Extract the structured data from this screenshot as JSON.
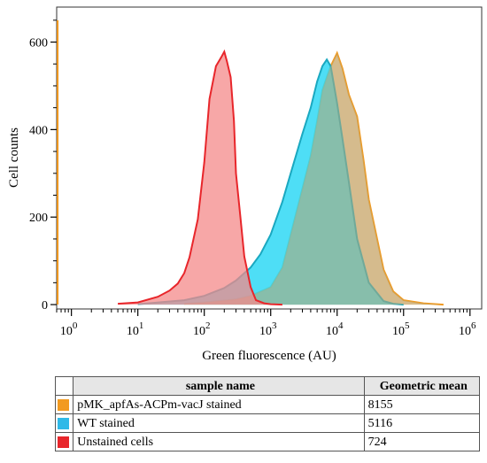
{
  "chart_data": {
    "type": "area",
    "xlabel": "Green fluorescence (AU)",
    "ylabel": "Cell counts",
    "x_scale": "log10",
    "xlim": [
      0.6,
      1500000
    ],
    "ylim": [
      -10,
      680
    ],
    "xticks": [
      {
        "value": 1,
        "base": "10",
        "exp": "0"
      },
      {
        "value": 10,
        "base": "10",
        "exp": "1"
      },
      {
        "value": 100,
        "base": "10",
        "exp": "2"
      },
      {
        "value": 1000,
        "base": "10",
        "exp": "3"
      },
      {
        "value": 10000,
        "base": "10",
        "exp": "4"
      },
      {
        "value": 100000,
        "base": "10",
        "exp": "5"
      },
      {
        "value": 1000000,
        "base": "10",
        "exp": "6"
      }
    ],
    "yticks": [
      0,
      200,
      400,
      600
    ],
    "series": [
      {
        "name": "Unstained cells",
        "stroke": "#e8262b",
        "fill": "#f48a8a",
        "x": [
          5,
          10,
          20,
          30,
          40,
          50,
          60,
          80,
          100,
          120,
          150,
          180,
          200,
          220,
          250,
          280,
          300,
          350,
          400,
          500,
          600,
          800,
          1000,
          1500
        ],
        "y": [
          2,
          5,
          18,
          32,
          48,
          72,
          108,
          195,
          325,
          470,
          545,
          565,
          578,
          555,
          520,
          420,
          300,
          200,
          110,
          40,
          10,
          3,
          1,
          0
        ]
      },
      {
        "name": "WT stained",
        "stroke": "#1aa8c0",
        "fill": "#2fd8f5",
        "x": [
          10,
          50,
          100,
          200,
          300,
          500,
          700,
          1000,
          1500,
          2000,
          3000,
          4000,
          5000,
          6000,
          7000,
          8000,
          10000,
          12000,
          15000,
          20000,
          30000,
          50000,
          70000,
          100000
        ],
        "y": [
          1,
          10,
          20,
          38,
          55,
          85,
          115,
          160,
          235,
          300,
          390,
          450,
          510,
          545,
          560,
          545,
          460,
          380,
          280,
          150,
          50,
          8,
          2,
          0
        ]
      },
      {
        "name": "pMK_apfAs-ACPm-vacJ stained",
        "stroke": "#f29a20",
        "fill": "#f5c28a",
        "x": [
          50,
          100,
          300,
          500,
          1000,
          1500,
          2000,
          3000,
          4000,
          5000,
          6000,
          7000,
          8000,
          10000,
          12000,
          15000,
          20000,
          25000,
          30000,
          50000,
          70000,
          100000,
          200000,
          400000
        ],
        "y": [
          2,
          5,
          12,
          20,
          40,
          85,
          160,
          265,
          340,
          420,
          490,
          520,
          545,
          575,
          540,
          480,
          430,
          330,
          240,
          80,
          30,
          10,
          3,
          0
        ]
      }
    ],
    "spike": {
      "x": 0.62,
      "y": 650
    }
  },
  "table": {
    "headers": {
      "name": "sample name",
      "value": "Geometric mean"
    },
    "rows": [
      {
        "name": "pMK_apfAs-ACPm-vacJ stained",
        "value": "8155",
        "color": "#f29a20"
      },
      {
        "name": "WT stained",
        "value": "5116",
        "color": "#2fb9e8"
      },
      {
        "name": "Unstained cells",
        "value": "724",
        "color": "#e8262b"
      }
    ]
  }
}
